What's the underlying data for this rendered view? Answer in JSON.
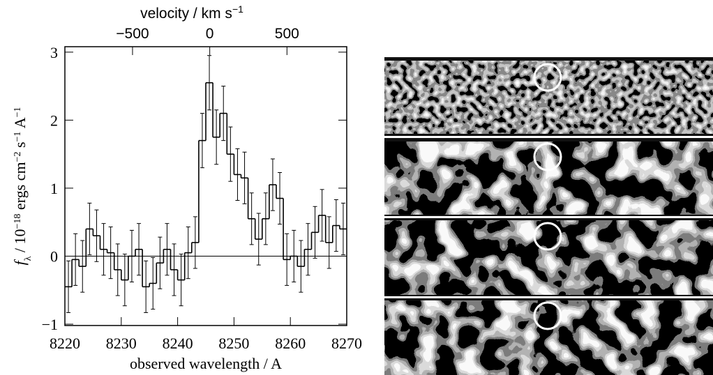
{
  "chart_data": {
    "type": "step",
    "x": [
      8220.625,
      8221.875,
      8223.125,
      8224.375,
      8225.625,
      8226.875,
      8228.125,
      8229.375,
      8230.625,
      8231.875,
      8233.125,
      8234.375,
      8235.625,
      8236.875,
      8238.125,
      8239.375,
      8240.625,
      8241.875,
      8243.125,
      8244.375,
      8245.625,
      8246.875,
      8248.125,
      8249.375,
      8250.625,
      8251.875,
      8253.125,
      8254.375,
      8255.625,
      8256.875,
      8258.125,
      8259.375,
      8260.625,
      8261.875,
      8263.125,
      8264.375,
      8265.625,
      8266.875,
      8268.125,
      8269.375
    ],
    "values": [
      -0.45,
      -0.05,
      -0.15,
      0.4,
      0.3,
      0.1,
      0.05,
      -0.2,
      -0.35,
      0.0,
      0.1,
      -0.45,
      -0.4,
      -0.1,
      0.1,
      -0.2,
      -0.35,
      0.05,
      0.2,
      1.7,
      2.55,
      1.75,
      2.1,
      1.5,
      1.2,
      1.15,
      0.55,
      0.25,
      0.55,
      1.05,
      0.85,
      -0.05,
      0.0,
      -0.15,
      0.1,
      0.35,
      0.6,
      0.2,
      0.45,
      0.4
    ],
    "errors": [
      0.38,
      0.38,
      0.38,
      0.38,
      0.38,
      0.38,
      0.38,
      0.38,
      0.38,
      0.38,
      0.38,
      0.38,
      0.38,
      0.38,
      0.38,
      0.38,
      0.38,
      0.38,
      0.38,
      0.4,
      0.4,
      0.4,
      0.4,
      0.4,
      0.38,
      0.38,
      0.38,
      0.38,
      0.38,
      0.38,
      0.38,
      0.38,
      0.38,
      0.38,
      0.38,
      0.38,
      0.38,
      0.38,
      0.38,
      0.38
    ],
    "color": "#000000",
    "zero_line": true,
    "xlim": [
      8220,
      8270
    ],
    "xticks": [
      8220,
      8230,
      8240,
      8250,
      8260,
      8270
    ],
    "ylim": [
      -1.02,
      3.08
    ],
    "yticks": [
      {
        "value": -1,
        "label": "−1"
      },
      0,
      1,
      2,
      3
    ],
    "x2lim": [
      -938,
      887
    ],
    "x2ticks": [
      {
        "value": -500,
        "label": "−500"
      },
      0,
      500
    ],
    "xlabel": "observed wavelength / A",
    "ylabel": [
      {
        "text": "f",
        "pos": "italic"
      },
      {
        "text": "λ",
        "pos": "sub"
      },
      {
        "text": " / 10",
        "pos": "base"
      },
      {
        "text": "−18",
        "pos": "sup"
      },
      {
        "text": " ergs cm",
        "pos": "base"
      },
      {
        "text": "−2",
        "pos": "sup"
      },
      {
        "text": " s",
        "pos": "base"
      },
      {
        "text": "−1",
        "pos": "sup"
      },
      {
        "text": " A",
        "pos": "base"
      },
      {
        "text": "−1",
        "pos": "sup"
      }
    ],
    "x2label": [
      {
        "text": "velocity / km s",
        "pos": "base"
      },
      {
        "text": "−1",
        "pos": "sup"
      }
    ]
  }
}
